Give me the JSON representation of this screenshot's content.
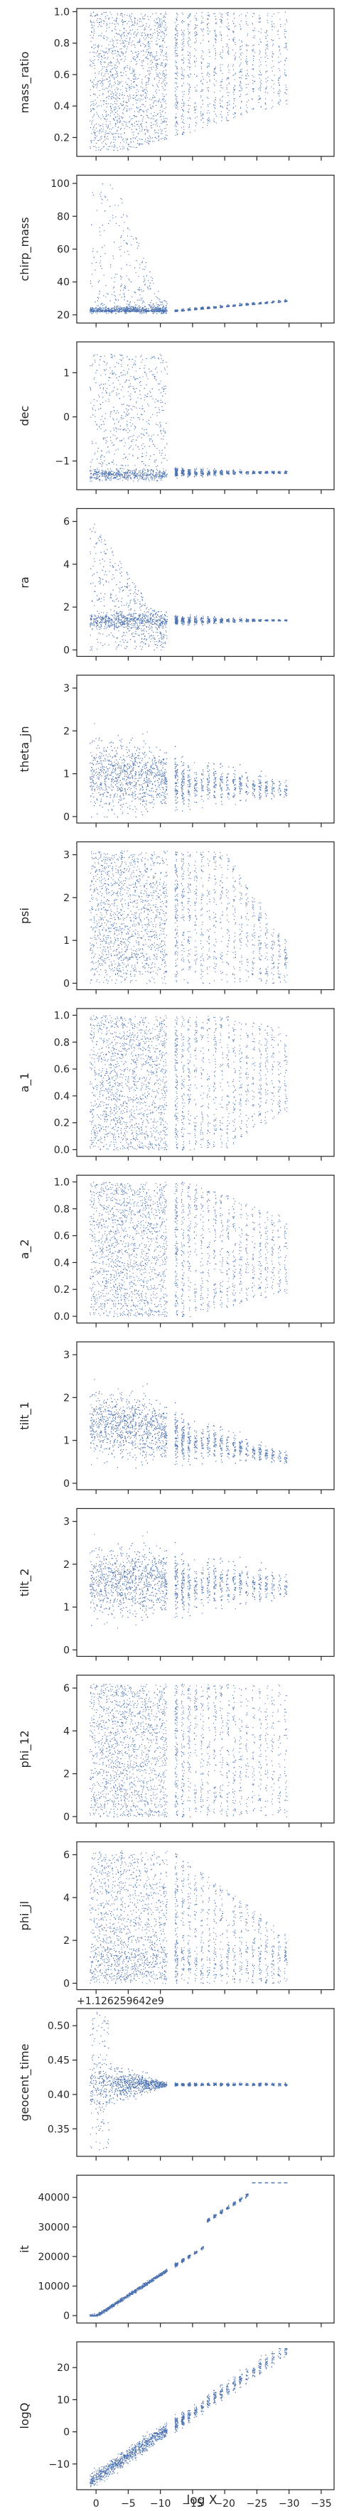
{
  "figure": {
    "type": "scatter",
    "shared_x_label": "log X",
    "point_color": "#4C72B0",
    "x_ticks": [
      "0",
      "−5",
      "−10",
      "−15",
      "−20",
      "−25",
      "−30",
      "−35"
    ]
  },
  "chart_data": [
    {
      "type": "scatter",
      "ylabel": "mass_ratio",
      "yticks": [
        "0.2",
        "0.4",
        "0.6",
        "0.8",
        "1.0"
      ],
      "ylim": [
        0.08,
        1.02
      ]
    },
    {
      "type": "scatter",
      "ylabel": "chirp_mass",
      "yticks": [
        "20",
        "40",
        "60",
        "80",
        "100"
      ],
      "ylim": [
        15,
        105
      ]
    },
    {
      "type": "scatter",
      "ylabel": "dec",
      "yticks": [
        "−1",
        "0",
        "1"
      ],
      "ylim": [
        -1.65,
        1.7
      ]
    },
    {
      "type": "scatter",
      "ylabel": "ra",
      "yticks": [
        "0",
        "2",
        "4",
        "6"
      ],
      "ylim": [
        -0.3,
        6.6
      ]
    },
    {
      "type": "scatter",
      "ylabel": "theta_jn",
      "yticks": [
        "0",
        "1",
        "2",
        "3"
      ],
      "ylim": [
        -0.15,
        3.3
      ]
    },
    {
      "type": "scatter",
      "ylabel": "psi",
      "yticks": [
        "0",
        "1",
        "2",
        "3"
      ],
      "ylim": [
        -0.15,
        3.3
      ]
    },
    {
      "type": "scatter",
      "ylabel": "a_1",
      "yticks": [
        "0.0",
        "0.2",
        "0.4",
        "0.6",
        "0.8",
        "1.0"
      ],
      "ylim": [
        -0.05,
        1.05
      ]
    },
    {
      "type": "scatter",
      "ylabel": "a_2",
      "yticks": [
        "0.0",
        "0.2",
        "0.4",
        "0.6",
        "0.8",
        "1.0"
      ],
      "ylim": [
        -0.05,
        1.05
      ]
    },
    {
      "type": "scatter",
      "ylabel": "tilt_1",
      "yticks": [
        "0",
        "1",
        "2",
        "3"
      ],
      "ylim": [
        -0.15,
        3.3
      ]
    },
    {
      "type": "scatter",
      "ylabel": "tilt_2",
      "yticks": [
        "0",
        "1",
        "2",
        "3"
      ],
      "ylim": [
        -0.15,
        3.3
      ]
    },
    {
      "type": "scatter",
      "ylabel": "phi_12",
      "yticks": [
        "0",
        "2",
        "4",
        "6"
      ],
      "ylim": [
        -0.3,
        6.6
      ]
    },
    {
      "type": "scatter",
      "ylabel": "phi_jl",
      "yticks": [
        "0",
        "2",
        "4",
        "6"
      ],
      "ylim": [
        -0.3,
        6.6
      ]
    },
    {
      "type": "scatter",
      "ylabel": "geocent_time",
      "offset_text": "+1.126259642e9",
      "yticks": [
        "0.35",
        "0.40",
        "0.45",
        "0.50"
      ],
      "ylim": [
        0.31,
        0.525
      ]
    },
    {
      "type": "scatter",
      "ylabel": "it",
      "yticks": [
        "0",
        "10000",
        "20000",
        "30000",
        "40000"
      ],
      "ylim": [
        -2500,
        47500
      ]
    },
    {
      "type": "scatter",
      "ylabel": "logQ",
      "yticks": [
        "−10",
        "0",
        "10",
        "20"
      ],
      "ylim": [
        -18,
        28
      ]
    }
  ]
}
